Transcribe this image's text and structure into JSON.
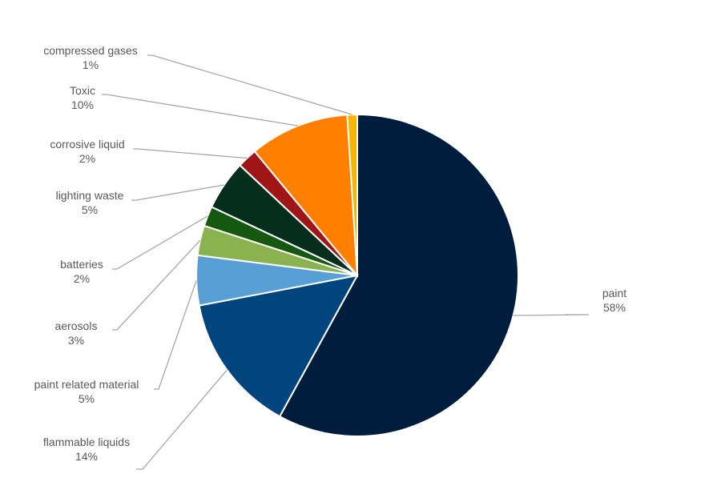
{
  "chart_data": {
    "type": "pie",
    "title": "",
    "legend": "none",
    "start_angle_deg": 0,
    "direction": "clockwise",
    "slices": [
      {
        "label": "paint",
        "value": 58,
        "value_label": "58%",
        "color": "#001d3d"
      },
      {
        "label": "flammable liquids",
        "value": 14,
        "value_label": "14%",
        "color": "#00457e"
      },
      {
        "label": "paint related material",
        "value": 5,
        "value_label": "5%",
        "color": "#579fd5"
      },
      {
        "label": "aerosols",
        "value": 3,
        "value_label": "3%",
        "color": "#8ab34f"
      },
      {
        "label": "batteries",
        "value": 2,
        "value_label": "2%",
        "color": "#155810"
      },
      {
        "label": "lighting waste",
        "value": 5,
        "value_label": "5%",
        "color": "#062e1c"
      },
      {
        "label": "corrosive liquid",
        "value": 2,
        "value_label": "2%",
        "color": "#a01616"
      },
      {
        "label": "Toxic",
        "value": 10,
        "value_label": "10%",
        "color": "#ff7f00"
      },
      {
        "label": "compressed gases",
        "value": 1,
        "value_label": "1%",
        "color": "#f7b500"
      }
    ]
  }
}
